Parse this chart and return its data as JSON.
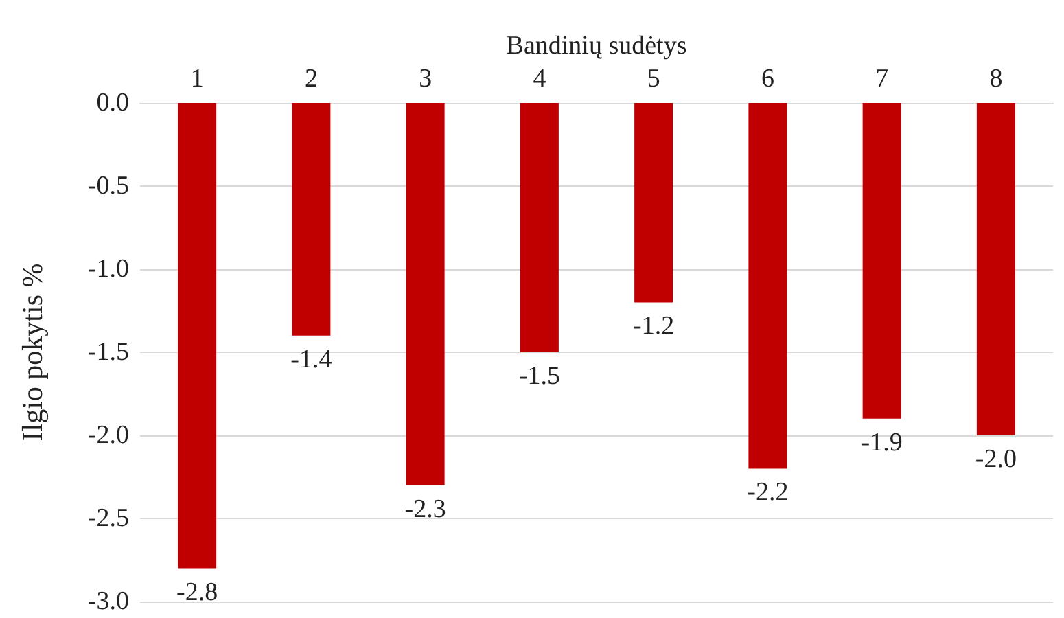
{
  "chart_data": {
    "type": "bar",
    "xlabel": "Bandinių sudėtys",
    "ylabel": "Ilgio pokytis %",
    "categories": [
      "1",
      "2",
      "3",
      "4",
      "5",
      "6",
      "7",
      "8"
    ],
    "values": [
      -2.8,
      -1.4,
      -2.3,
      -1.5,
      -1.2,
      -2.2,
      -1.9,
      -2.0
    ],
    "value_labels": [
      "-2.8",
      "-1.4",
      "-2.3",
      "-1.5",
      "-1.2",
      "-2.2",
      "-1.9",
      "-2.0"
    ],
    "color": "#c00000",
    "ylim": [
      -3,
      0
    ],
    "yticks": [
      {
        "value": 0,
        "label": "0.0"
      },
      {
        "value": -0.5,
        "label": "-0.5"
      },
      {
        "value": -1,
        "label": "-1.0"
      },
      {
        "value": -1.5,
        "label": "-1.5"
      },
      {
        "value": -2,
        "label": "-2.0"
      },
      {
        "value": -2.5,
        "label": "-2.5"
      },
      {
        "value": -3,
        "label": "-3.0"
      }
    ],
    "grid": "y"
  }
}
